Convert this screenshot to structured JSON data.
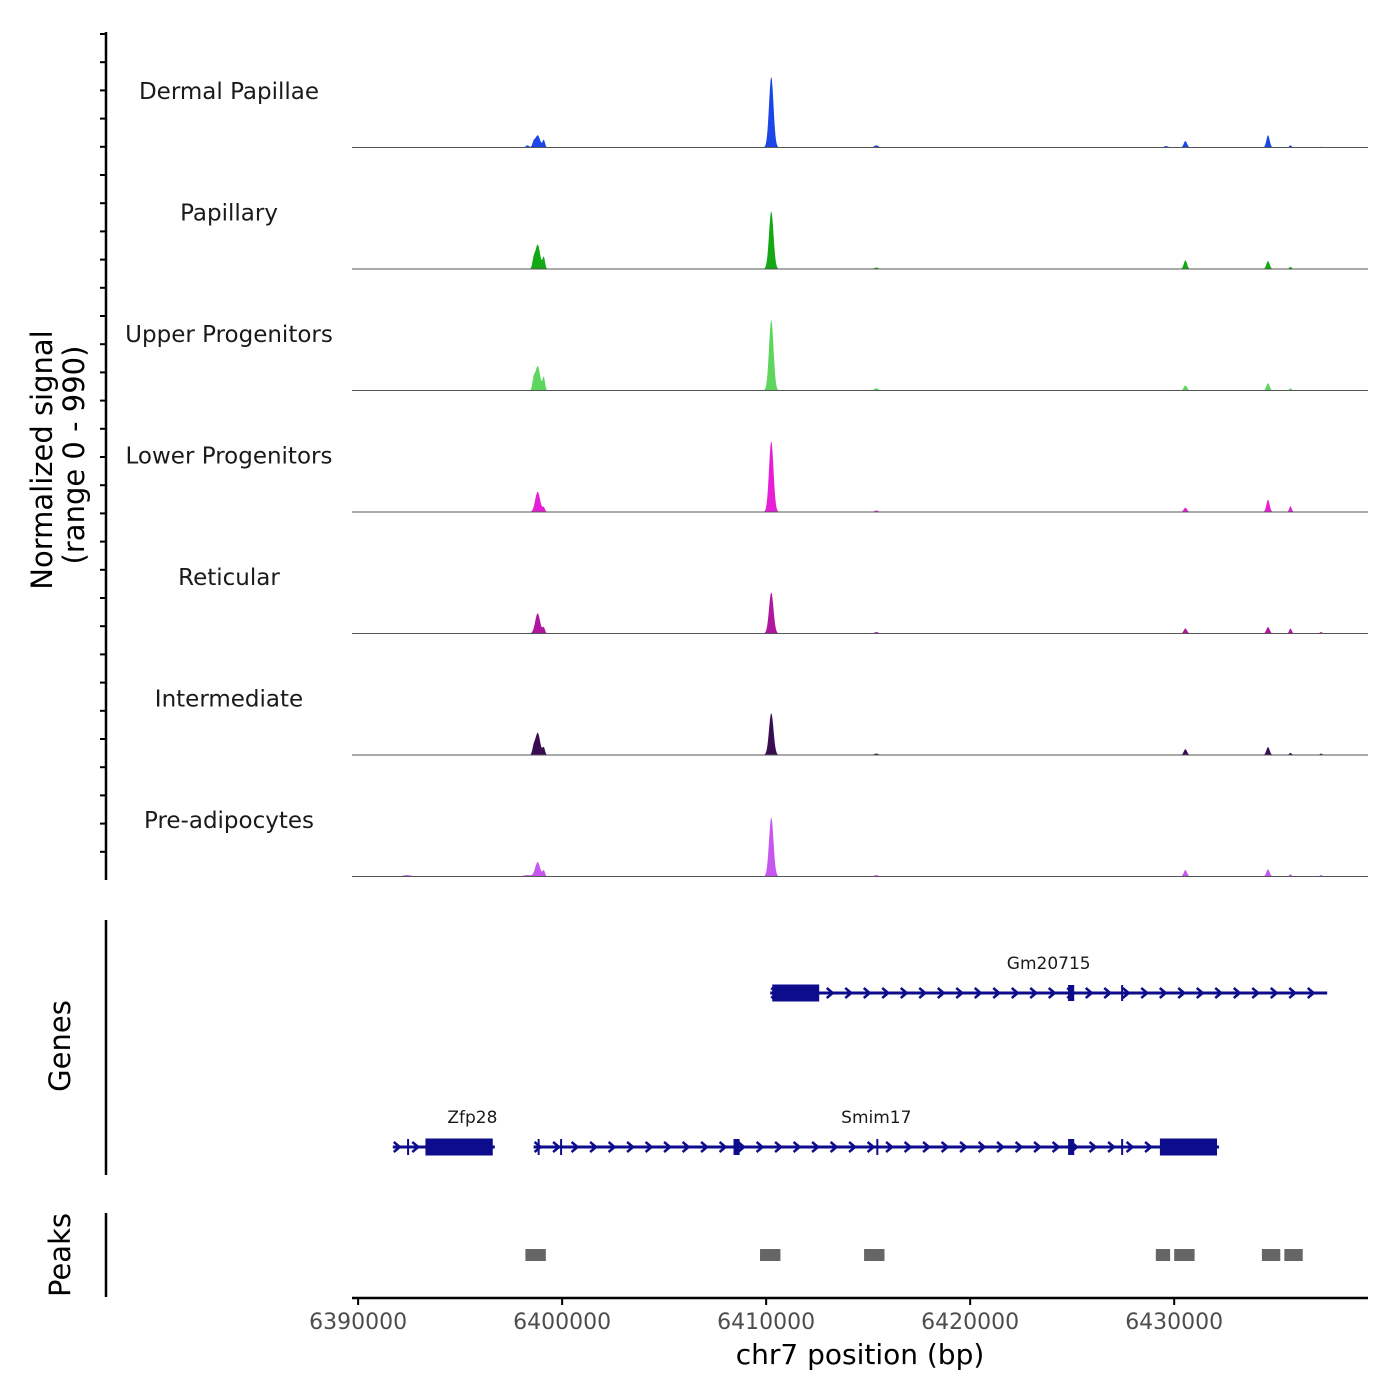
{
  "chart_data": {
    "type": "area",
    "title": "",
    "chromosome": "chr7",
    "xlabel": "chr7 position (bp)",
    "ylabel_line1": "Normalized signal",
    "ylabel_line2": "(range 0 - 990)",
    "signal_range": [
      0,
      990
    ],
    "xlim": [
      6389700,
      6439500
    ],
    "x_ticks": [
      6390000,
      6400000,
      6410000,
      6420000,
      6430000
    ],
    "x_tick_labels": [
      "6390000",
      "6400000",
      "6410000",
      "6420000",
      "6430000"
    ],
    "tracks": [
      {
        "name": "Dermal Papillae",
        "color": "#1a47e6",
        "peaks": [
          [
            6398800,
            0.17,
            120
          ],
          [
            6398600,
            0.06,
            60
          ],
          [
            6399100,
            0.1,
            60
          ],
          [
            6398300,
            0.03,
            80
          ],
          [
            6410250,
            0.98,
            110
          ],
          [
            6415400,
            0.03,
            100
          ],
          [
            6429600,
            0.02,
            100
          ],
          [
            6430550,
            0.09,
            80
          ],
          [
            6434600,
            0.17,
            80
          ],
          [
            6435700,
            0.03,
            60
          ],
          [
            6437200,
            0.01,
            60
          ]
        ]
      },
      {
        "name": "Papillary",
        "color": "#14a814",
        "peaks": [
          [
            6398800,
            0.34,
            120
          ],
          [
            6398600,
            0.1,
            60
          ],
          [
            6399100,
            0.16,
            60
          ],
          [
            6410250,
            0.8,
            110
          ],
          [
            6415400,
            0.02,
            100
          ],
          [
            6430550,
            0.12,
            80
          ],
          [
            6434600,
            0.11,
            80
          ],
          [
            6435700,
            0.03,
            60
          ]
        ]
      },
      {
        "name": "Upper Progenitors",
        "color": "#5ed65e",
        "peaks": [
          [
            6398800,
            0.34,
            120
          ],
          [
            6398600,
            0.12,
            60
          ],
          [
            6399100,
            0.18,
            60
          ],
          [
            6410250,
            0.98,
            110
          ],
          [
            6415400,
            0.03,
            100
          ],
          [
            6430550,
            0.07,
            80
          ],
          [
            6434600,
            0.1,
            80
          ],
          [
            6435700,
            0.03,
            60
          ]
        ]
      },
      {
        "name": "Lower Progenitors",
        "color": "#e61ed6",
        "peaks": [
          [
            6398800,
            0.28,
            120
          ],
          [
            6399100,
            0.06,
            60
          ],
          [
            6410250,
            0.98,
            110
          ],
          [
            6415400,
            0.02,
            100
          ],
          [
            6430550,
            0.06,
            80
          ],
          [
            6434600,
            0.17,
            80
          ],
          [
            6435700,
            0.08,
            60
          ]
        ]
      },
      {
        "name": "Reticular",
        "color": "#b0169e",
        "peaks": [
          [
            6398800,
            0.28,
            120
          ],
          [
            6399100,
            0.08,
            60
          ],
          [
            6410250,
            0.57,
            110
          ],
          [
            6415400,
            0.02,
            100
          ],
          [
            6430550,
            0.07,
            80
          ],
          [
            6434600,
            0.09,
            80
          ],
          [
            6435700,
            0.07,
            60
          ],
          [
            6437200,
            0.02,
            60
          ]
        ]
      },
      {
        "name": "Intermediate",
        "color": "#3a0d52",
        "peaks": [
          [
            6398800,
            0.31,
            120
          ],
          [
            6398600,
            0.08,
            60
          ],
          [
            6399100,
            0.1,
            60
          ],
          [
            6410250,
            0.58,
            110
          ],
          [
            6415400,
            0.02,
            100
          ],
          [
            6430550,
            0.08,
            80
          ],
          [
            6434600,
            0.11,
            80
          ],
          [
            6435700,
            0.03,
            60
          ],
          [
            6437200,
            0.02,
            60
          ]
        ]
      },
      {
        "name": "Pre-adipocytes",
        "color": "#c658f0",
        "peaks": [
          [
            6398800,
            0.2,
            120
          ],
          [
            6399100,
            0.08,
            60
          ],
          [
            6410250,
            0.82,
            110
          ],
          [
            6415400,
            0.02,
            100
          ],
          [
            6430550,
            0.09,
            80
          ],
          [
            6434600,
            0.1,
            80
          ],
          [
            6435700,
            0.03,
            60
          ],
          [
            6437200,
            0.02,
            60
          ],
          [
            6392400,
            0.02,
            200
          ],
          [
            6398300,
            0.02,
            200
          ]
        ]
      }
    ],
    "genes_label": "Genes",
    "genes": [
      {
        "name": "Gm20715",
        "row": 0,
        "start": 6410200,
        "end": 6437500,
        "strand": "+",
        "exons": [
          [
            6410300,
            6412600
          ],
          [
            6424800,
            6425100
          ],
          [
            6427400,
            6427450
          ]
        ]
      },
      {
        "name": "Zfp28",
        "row": 1,
        "start": 6391700,
        "end": 6396700,
        "strand": "+",
        "exons": [
          [
            6392400,
            6392460
          ],
          [
            6393300,
            6396600
          ]
        ]
      },
      {
        "name": "Smim17",
        "row": 1,
        "start": 6398600,
        "end": 6432200,
        "strand": "+",
        "exons": [
          [
            6398800,
            6398850
          ],
          [
            6399900,
            6399960
          ],
          [
            6408400,
            6408700
          ],
          [
            6415400,
            6415450
          ],
          [
            6424800,
            6425100
          ],
          [
            6427400,
            6427450
          ],
          [
            6429300,
            6432100
          ]
        ]
      }
    ],
    "peaks_label": "Peaks",
    "peaks_color": "#666666",
    "peaks": [
      [
        6398200,
        6399200
      ],
      [
        6409700,
        6410700
      ],
      [
        6414800,
        6415800
      ],
      [
        6429100,
        6429800
      ],
      [
        6430000,
        6431000
      ],
      [
        6434300,
        6435200
      ],
      [
        6435400,
        6436300
      ]
    ]
  }
}
